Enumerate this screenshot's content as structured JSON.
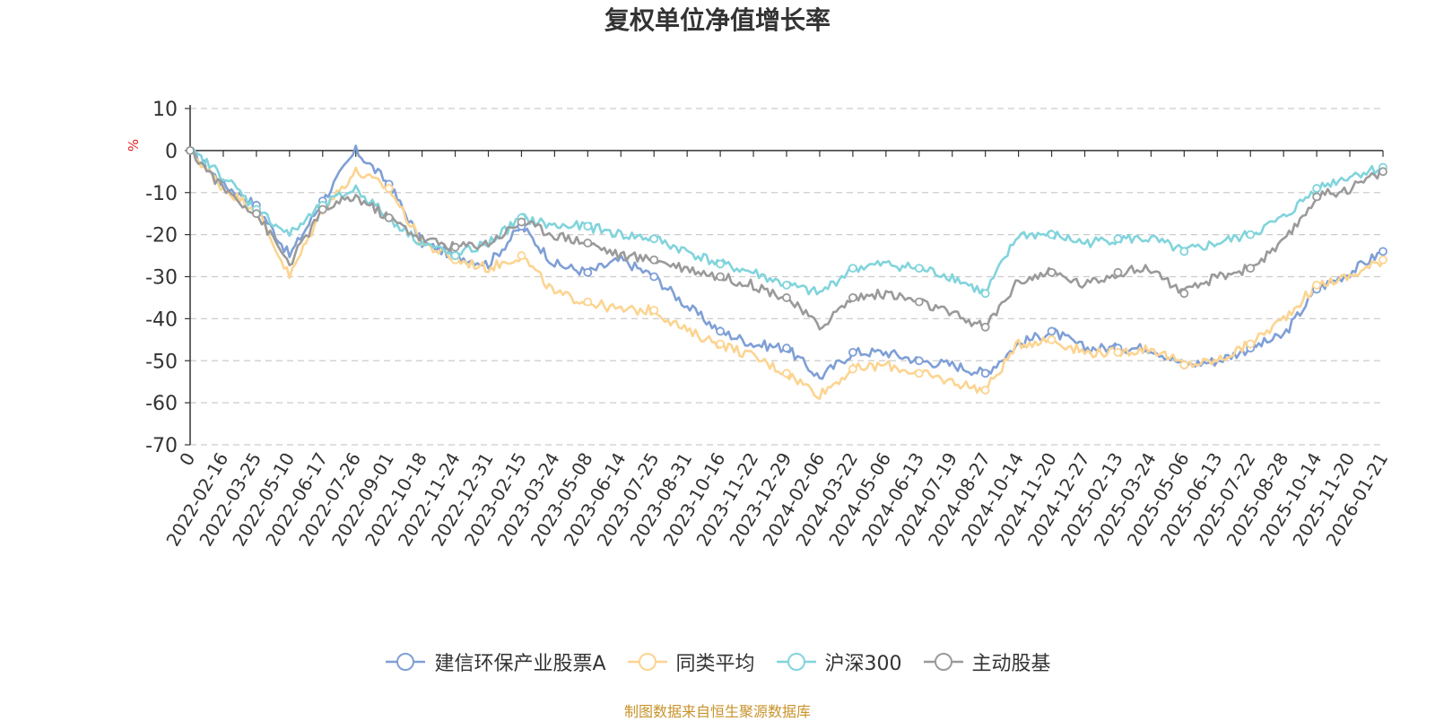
{
  "chart_data": {
    "type": "line",
    "title": "复权单位净值增长率",
    "ylabel": "%",
    "ylim": [
      -70,
      10
    ],
    "yticks": [
      10,
      0,
      -10,
      -20,
      -30,
      -40,
      -50,
      -60,
      -70
    ],
    "grid": true,
    "legend_position": "bottom",
    "categories": [
      "0",
      "2022-02-16",
      "2022-03-25",
      "2022-05-10",
      "2022-06-17",
      "2022-07-26",
      "2022-09-01",
      "2022-10-18",
      "2022-11-24",
      "2022-12-31",
      "2023-02-15",
      "2023-03-24",
      "2023-05-08",
      "2023-06-14",
      "2023-07-25",
      "2023-08-31",
      "2023-10-16",
      "2023-11-22",
      "2023-12-29",
      "2024-02-06",
      "2024-03-22",
      "2024-05-06",
      "2024-06-13",
      "2024-07-19",
      "2024-08-27",
      "2024-10-14",
      "2024-11-20",
      "2024-12-27",
      "2025-02-13",
      "2025-03-24",
      "2025-05-06",
      "2025-06-13",
      "2025-07-22",
      "2025-08-28",
      "2025-10-14",
      "2025-11-20",
      "2026-01-21"
    ],
    "series": [
      {
        "name": "建信环保产业股票A",
        "color": "#7f9fd6",
        "values": [
          0,
          -8,
          -13,
          -25,
          -12,
          0,
          -8,
          -22,
          -25,
          -27,
          -18,
          -27,
          -29,
          -26,
          -30,
          -37,
          -43,
          -46,
          -47,
          -54,
          -48,
          -48,
          -50,
          -51,
          -53,
          -46,
          -43,
          -47,
          -47,
          -47,
          -51,
          -50,
          -47,
          -44,
          -33,
          -29,
          -24
        ]
      },
      {
        "name": "同类平均",
        "color": "#fcd491",
        "values": [
          0,
          -9,
          -14,
          -30,
          -14,
          -5,
          -9,
          -22,
          -26,
          -28,
          -25,
          -34,
          -36,
          -38,
          -38,
          -43,
          -46,
          -49,
          -53,
          -58,
          -52,
          -51,
          -53,
          -55,
          -57,
          -46,
          -45,
          -48,
          -48,
          -47,
          -51,
          -50,
          -46,
          -40,
          -32,
          -30,
          -26
        ]
      },
      {
        "name": "沪深300",
        "color": "#81d4dc",
        "values": [
          0,
          -6,
          -14,
          -20,
          -13,
          -9,
          -16,
          -22,
          -25,
          -22,
          -16,
          -18,
          -18,
          -20,
          -21,
          -24,
          -27,
          -29,
          -32,
          -34,
          -28,
          -27,
          -28,
          -30,
          -34,
          -20,
          -20,
          -22,
          -21,
          -21,
          -24,
          -22,
          -20,
          -16,
          -9,
          -6,
          -4
        ]
      },
      {
        "name": "主动股基",
        "color": "#9a9a9a",
        "values": [
          0,
          -9,
          -15,
          -27,
          -14,
          -11,
          -16,
          -21,
          -23,
          -22,
          -17,
          -20,
          -22,
          -25,
          -26,
          -28,
          -30,
          -32,
          -35,
          -42,
          -35,
          -34,
          -36,
          -39,
          -42,
          -31,
          -29,
          -32,
          -29,
          -28,
          -34,
          -30,
          -28,
          -22,
          -11,
          -9,
          -5
        ]
      }
    ]
  },
  "footer": {
    "source": "制图数据来自恒生聚源数据库"
  }
}
